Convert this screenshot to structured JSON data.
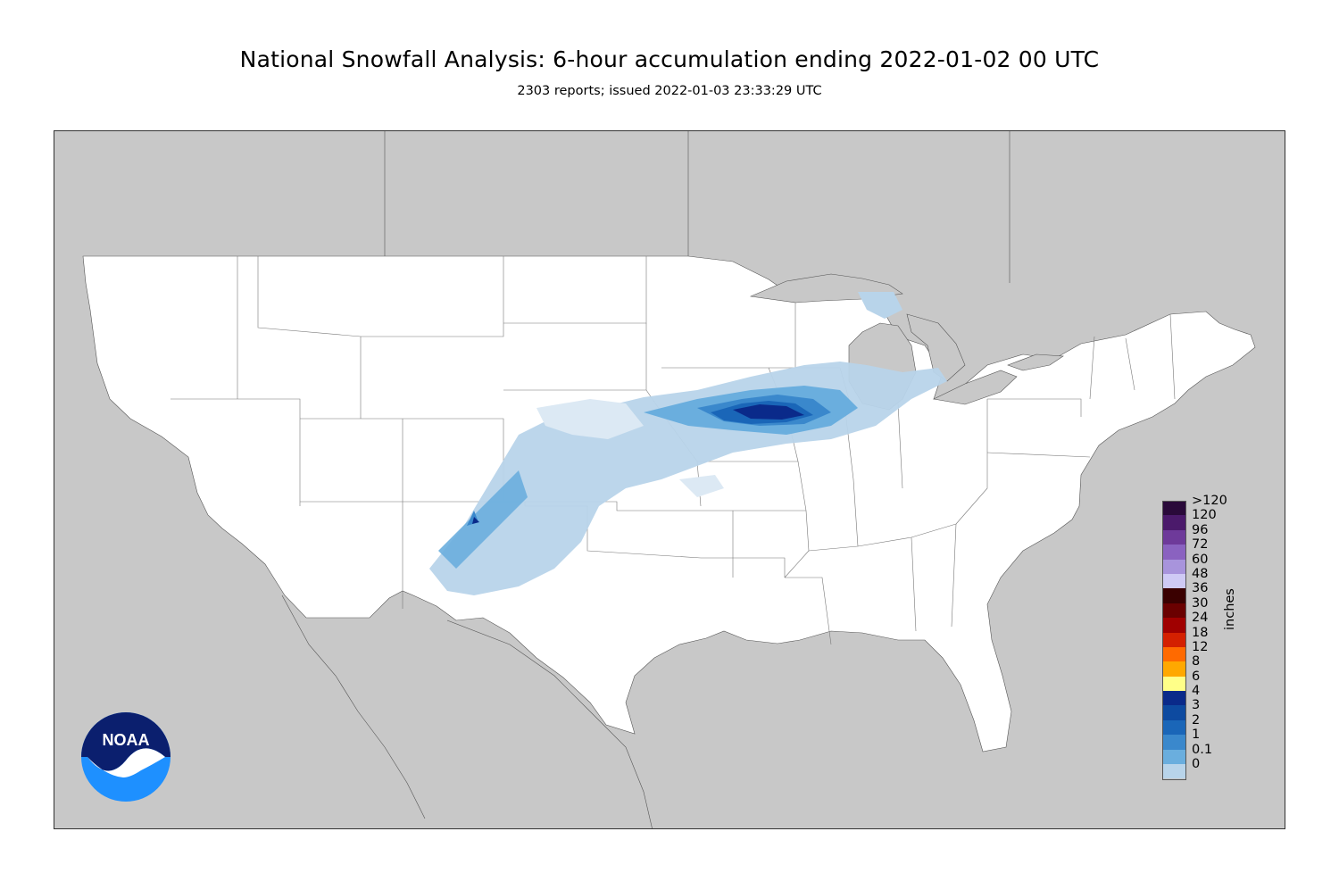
{
  "title": "National Snowfall Analysis: 6-hour accumulation ending 2022-01-02 00 UTC",
  "subtitle": "2303 reports; issued 2022-01-03 23:33:29 UTC",
  "logo": {
    "text": "NOAA",
    "name": "noaa-logo"
  },
  "legend": {
    "units": "inches",
    "levels": [
      {
        "label": ">120",
        "color": "#2a0a3a"
      },
      {
        "label": "120",
        "color": "#4b1a6b"
      },
      {
        "label": "96",
        "color": "#6e3a9a"
      },
      {
        "label": "72",
        "color": "#8a62c0"
      },
      {
        "label": "60",
        "color": "#a894dc"
      },
      {
        "label": "48",
        "color": "#cfcaf5"
      },
      {
        "label": "36",
        "color": "#3a0000"
      },
      {
        "label": "30",
        "color": "#6a0000"
      },
      {
        "label": "24",
        "color": "#a00000"
      },
      {
        "label": "18",
        "color": "#d42000"
      },
      {
        "label": "12",
        "color": "#ff6a00"
      },
      {
        "label": "8",
        "color": "#ffa800"
      },
      {
        "label": "6",
        "color": "#ffff88"
      },
      {
        "label": "4",
        "color": "#0a2a8a"
      },
      {
        "label": "3",
        "color": "#0d4aa0"
      },
      {
        "label": "2",
        "color": "#1a66b8"
      },
      {
        "label": "1",
        "color": "#3a88cc"
      },
      {
        "label": "0.1",
        "color": "#6aaede"
      },
      {
        "label": "0",
        "color": "#b8d4ea"
      }
    ]
  },
  "colors": {
    "land_outside": "#c8c8c8",
    "conus": "#ffffff",
    "snow_light": "#b8d4ea",
    "snow_trace": "#dce9f4",
    "snow_1": "#6aaede",
    "snow_2": "#3a88cc",
    "snow_3": "#1a66b8",
    "snow_4": "#0a2a8a"
  }
}
